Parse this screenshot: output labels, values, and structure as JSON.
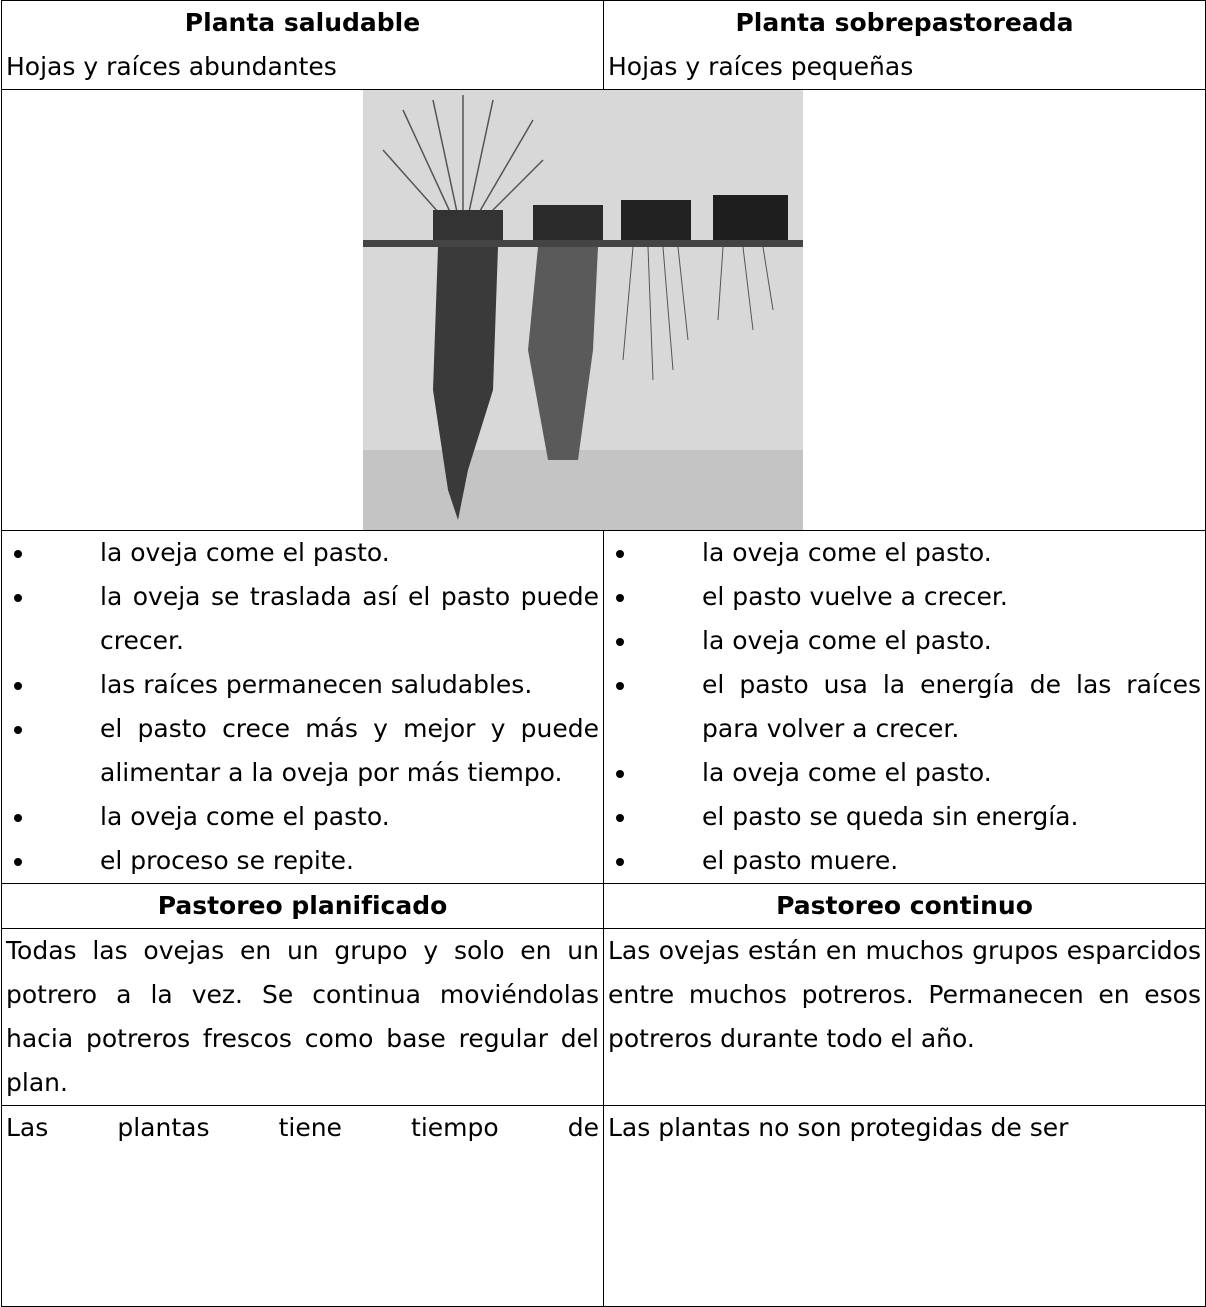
{
  "table": {
    "header": [
      {
        "title": "Planta saludable",
        "subtitle": "Hojas y raíces abundantes"
      },
      {
        "title": "Planta sobrepastoreada",
        "subtitle": "Hojas y raíces pequeñas"
      }
    ],
    "lists": [
      [
        "la oveja come el pasto.",
        "la oveja se traslada así el pasto puede crecer.",
        "las raíces permanecen saludables.",
        "el pasto crece más y mejor y puede alimentar a la oveja por más tiempo.",
        "la oveja come el pasto.",
        "el proceso se repite."
      ],
      [
        "la oveja come el pasto.",
        "el pasto vuelve a crecer.",
        "la oveja come el pasto.",
        "el pasto usa la energía de las raíces para volver a crecer.",
        "la oveja come el pasto.",
        "el pasto se queda sin energía.",
        "el pasto muere."
      ]
    ],
    "section": [
      "Pastoreo planificado",
      "Pastoreo continuo"
    ],
    "rows": [
      [
        "Todas las ovejas en un grupo y solo en un potrero a la vez.  Se continua moviéndolas hacia potreros frescos como base regular del plan.",
        "Las ovejas están en muchos grupos esparcidos entre muchos potreros. Permanecen en esos potreros durante todo el año."
      ],
      [
        "Las plantas tiene tiempo de",
        "Las plantas no son protegidas de ser"
      ]
    ]
  }
}
